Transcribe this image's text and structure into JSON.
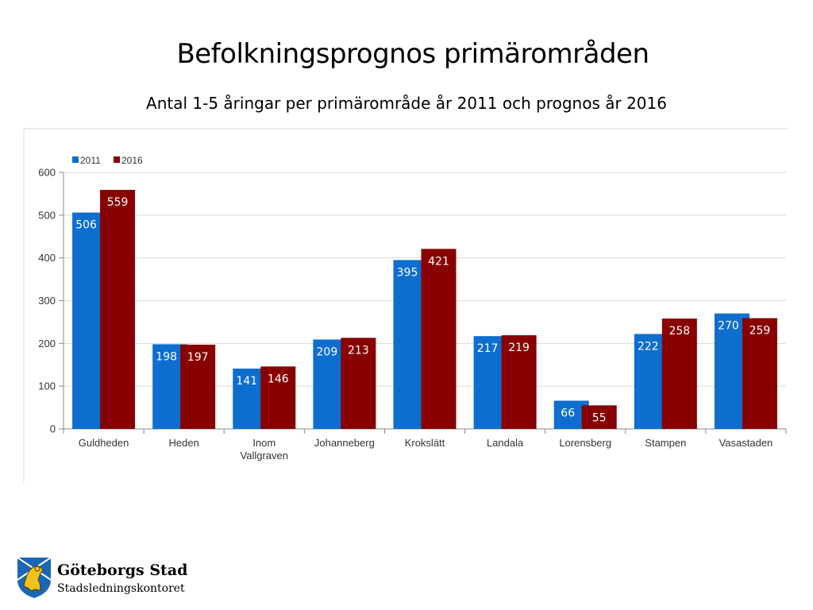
{
  "slide": {
    "title": "Befolkningsprognos primärområden",
    "subtitle": "Antal 1-5 åringar per primärområde år 2011 och prognos år 2016"
  },
  "logo": {
    "name": "Göteborgs Stad",
    "department": "Stadsledningskontoret",
    "icon": "goteborg-lion-crest-icon"
  },
  "chart_data": {
    "type": "bar",
    "categories": [
      "Guldheden",
      "Heden",
      "Inom Vallgraven",
      "Johanneberg",
      "Krokslätt",
      "Landala",
      "Lorensberg",
      "Stampen",
      "Vasastaden"
    ],
    "series": [
      {
        "name": "2011",
        "color": "#0d6ecf",
        "values": [
          506,
          198,
          141,
          209,
          395,
          217,
          66,
          222,
          270
        ]
      },
      {
        "name": "2016",
        "color": "#880000",
        "values": [
          559,
          197,
          146,
          213,
          421,
          219,
          55,
          258,
          259
        ]
      }
    ],
    "ylim": [
      0,
      600
    ],
    "yticks": [
      0,
      100,
      200,
      300,
      400,
      500,
      600
    ],
    "grid": true,
    "legend": "top-left",
    "data_labels": true
  }
}
